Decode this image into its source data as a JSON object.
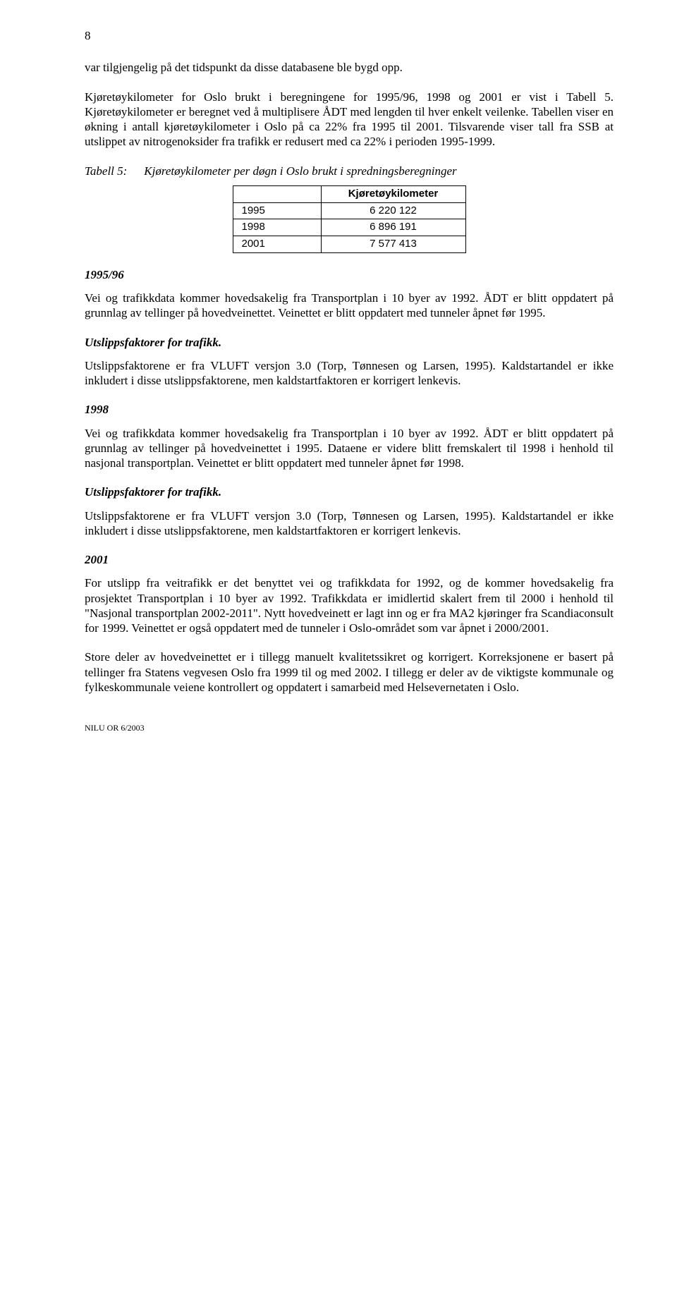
{
  "page_number": "8",
  "para1": "var tilgjengelig på det tidspunkt da disse databasene ble bygd opp.",
  "para2": "Kjøretøykilometer for Oslo brukt i beregningene for 1995/96, 1998 og 2001 er vist i Tabell 5. Kjøretøykilometer er beregnet ved å multiplisere ÅDT med lengden til hver enkelt veilenke. Tabellen viser en økning i antall kjøretøykilometer i Oslo på ca 22% fra 1995 til 2001. Tilsvarende viser tall fra SSB at utslippet av nitrogenoksider fra trafikk er redusert med ca 22% i perioden 1995-1999.",
  "table5": {
    "caption_label": "Tabell 5:",
    "caption_text": "Kjøretøykilometer per døgn i Oslo brukt i spredningsberegninger",
    "header": "Kjøretøykilometer",
    "rows": [
      {
        "year": "1995",
        "value": "6 220 122"
      },
      {
        "year": "1998",
        "value": "6 896 191"
      },
      {
        "year": "2001",
        "value": "7 577 413"
      }
    ]
  },
  "sec1": {
    "heading": "1995/96",
    "para1": "Vei og trafikkdata kommer hovedsakelig fra  Transportplan i 10 byer av 1992. ÅDT er blitt oppdatert på grunnlag av tellinger på hovedveinettet. Veinettet er blitt oppdatert med tunneler åpnet før 1995.",
    "sub_head": "Utslippsfaktorer for trafikk.",
    "para2": "Utslippsfaktorene er fra VLUFT versjon 3.0 (Torp, Tønnesen og Larsen, 1995). Kaldstartandel er ikke inkludert i disse utslippsfaktorene, men kaldstartfaktoren er korrigert  lenkevis."
  },
  "sec2": {
    "heading": "1998",
    "para1": "Vei og trafikkdata kommer hovedsakelig fra  Transportplan i 10 byer av 1992. ÅDT er blitt oppdatert på grunnlag av tellinger på hovedveinettet i 1995. Dataene er videre blitt fremskalert til 1998 i henhold til nasjonal transportplan. Veinettet er blitt oppdatert med tunneler åpnet før 1998.",
    "sub_head": "Utslippsfaktorer for trafikk.",
    "para2": "Utslippsfaktorene er fra VLUFT versjon 3.0 (Torp, Tønnesen og Larsen, 1995). Kaldstartandel er ikke inkludert i disse utslippsfaktorene, men kaldstartfaktoren er korrigert  lenkevis."
  },
  "sec3": {
    "heading": "2001",
    "para1": "For utslipp fra veitrafikk er det benyttet vei og trafikkdata for 1992, og de kommer hovedsakelig fra prosjektet Transportplan i 10 byer av 1992. Trafikkdata er imidlertid skalert frem til 2000 i henhold til \"Nasjonal transportplan 2002-2011\". Nytt hovedveinett er lagt inn og er fra MA2 kjøringer fra Scandiaconsult for 1999. Veinettet er også oppdatert med de tunneler i Oslo-området som var åpnet i 2000/2001.",
    "para2": "Store deler av hovedveinettet er i tillegg manuelt kvalitetssikret og korrigert. Korreksjonene er basert på tellinger fra Statens vegvesen Oslo fra 1999 til og med 2002. I tillegg er deler av de viktigste kommunale og fylkeskommunale veiene kontrollert og oppdatert i samarbeid med Helsevernetaten i Oslo."
  },
  "footer": "NILU OR  6/2003"
}
